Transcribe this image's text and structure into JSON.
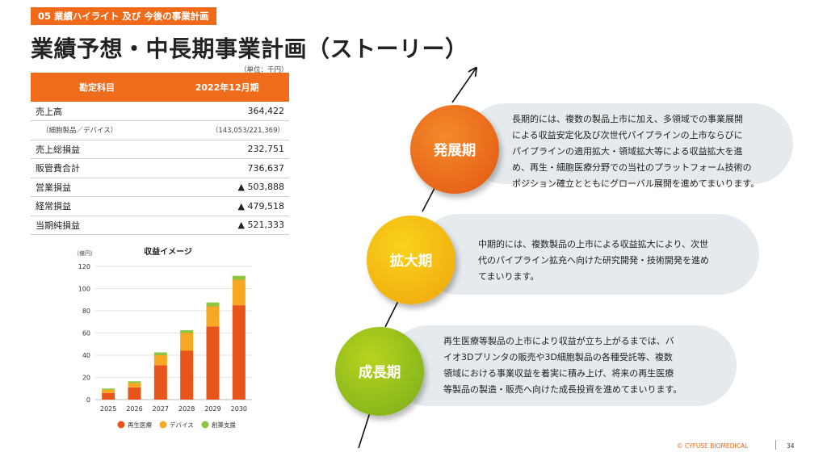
{
  "header": {
    "section_tag": "05 業績ハイライト 及び 今後の事業計画",
    "title": "業績予想・中長期事業計画（ストーリー）",
    "unit_note": "（単位：千円）"
  },
  "table": {
    "headers": [
      "勘定科目",
      "2022年12月期"
    ],
    "rows": [
      {
        "item": "売上高",
        "value": "364,422"
      },
      {
        "item": "（細胞製品／デバイス）",
        "value": "（143,053/221,369）"
      },
      {
        "item": "売上総損益",
        "value": "232,751"
      },
      {
        "item": "販管費合計",
        "value": "736,637"
      },
      {
        "item": "営業損益",
        "value": "▲ 503,888"
      },
      {
        "item": "経常損益",
        "value": "▲ 479,518"
      },
      {
        "item": "当期純損益",
        "value": "▲ 521,333"
      }
    ]
  },
  "chart_data": {
    "type": "bar",
    "stacked": true,
    "title": "収益イメージ",
    "ylabel": "（億円）",
    "categories": [
      "2025",
      "2026",
      "2027",
      "2028",
      "2029",
      "2030"
    ],
    "series": [
      {
        "name": "再生医療",
        "color": "#e8551a",
        "values": [
          6,
          11,
          31,
          44,
          66,
          85
        ]
      },
      {
        "name": "デバイス",
        "color": "#f6a823",
        "values": [
          3,
          4,
          9,
          16,
          18,
          23
        ]
      },
      {
        "name": "創薬支援",
        "color": "#8cc63f",
        "values": [
          1,
          1.5,
          2.5,
          2.5,
          3.5,
          3.5
        ]
      }
    ],
    "ylim": [
      0,
      120
    ],
    "yticks": [
      0,
      20,
      40,
      60,
      80,
      100,
      120
    ],
    "legend_position": "bottom",
    "grid": true
  },
  "story": {
    "stages": [
      {
        "label": "成長期",
        "color": "#8bb81c",
        "text_lines": [
          "再生医療等製品の上市により収益が立ち上がるまでは、バ",
          "イオ3Dプリンタの販売や3D細胞製品の各種受託等、複数",
          "領域における事業収益を着実に積み上げ、将来の再生医療",
          "等製品の製造・販売へ向けた成長投資を進めてまいります。"
        ]
      },
      {
        "label": "拡大期",
        "color": "#f2b310",
        "text_lines": [
          "中期的には、複数製品の上市による収益拡大により、次世",
          "代のパイプライン拡充へ向けた研究開発・技術開発を進め",
          "てまいります。"
        ]
      },
      {
        "label": "発展期",
        "color": "#e8661a",
        "text_lines": [
          "長期的には、複数の製品上市に加え、多領域での事業展開",
          "による収益安定化及び次世代パイプラインの上市ならびに",
          "パイプラインの適用拡大・領域拡大等による収益拡大を進",
          "め、再生・細胞医療分野での当社のプラットフォーム技術の",
          "ポジション確立とともにグローバル展開を進めてまいります。"
        ]
      }
    ]
  },
  "footer": {
    "copyright": "© CYFUSE BIOMEDICAL",
    "page_number": "34"
  }
}
